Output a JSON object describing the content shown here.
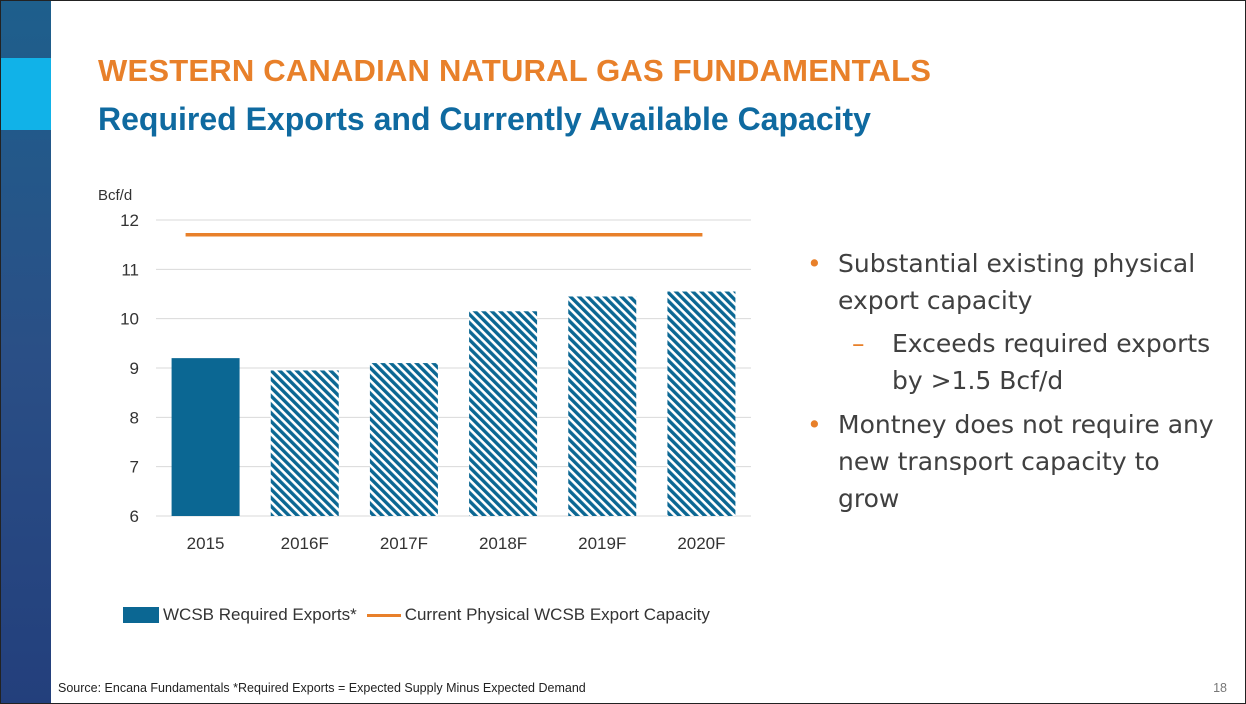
{
  "slide": {
    "title": "WESTERN CANADIAN NATURAL GAS FUNDAMENTALS",
    "subtitle": "Required Exports and Currently Available Capacity",
    "footer": "Source: Encana Fundamentals *Required Exports = Expected Supply Minus Expected Demand",
    "page_number": "18",
    "colors": {
      "title": "#e8802a",
      "subtitle": "#0f6aa0",
      "bar": "#0b6793",
      "capacity_line": "#e8802a",
      "sidebar": "#2a4f86",
      "sidebar_accent": "#11b2e8"
    }
  },
  "bullets": [
    {
      "text": "Substantial existing physical export capacity",
      "sub": [
        "Exceeds required exports by >1.5 Bcf/d"
      ]
    },
    {
      "text": "Montney does not require any new transport capacity to grow",
      "sub": []
    }
  ],
  "chart_data": {
    "type": "bar",
    "title": "",
    "ylabel": "Bcf/d",
    "xlabel": "",
    "ylim": [
      6,
      12
    ],
    "yticks": [
      6,
      7,
      8,
      9,
      10,
      11,
      12
    ],
    "grid": true,
    "categories": [
      "2015",
      "2016F",
      "2017F",
      "2018F",
      "2019F",
      "2020F"
    ],
    "series": [
      {
        "name": "WCSB Required Exports*",
        "type": "bar",
        "values": [
          9.2,
          8.95,
          9.1,
          10.15,
          10.45,
          10.55
        ],
        "forecast": [
          false,
          true,
          true,
          true,
          true,
          true
        ],
        "color": "#0b6793"
      },
      {
        "name": "Current Physical WCSB Export Capacity",
        "type": "line",
        "values": [
          11.7,
          11.7,
          11.7,
          11.7,
          11.7,
          11.7
        ],
        "color": "#e8802a"
      }
    ],
    "legend_position": "bottom"
  }
}
